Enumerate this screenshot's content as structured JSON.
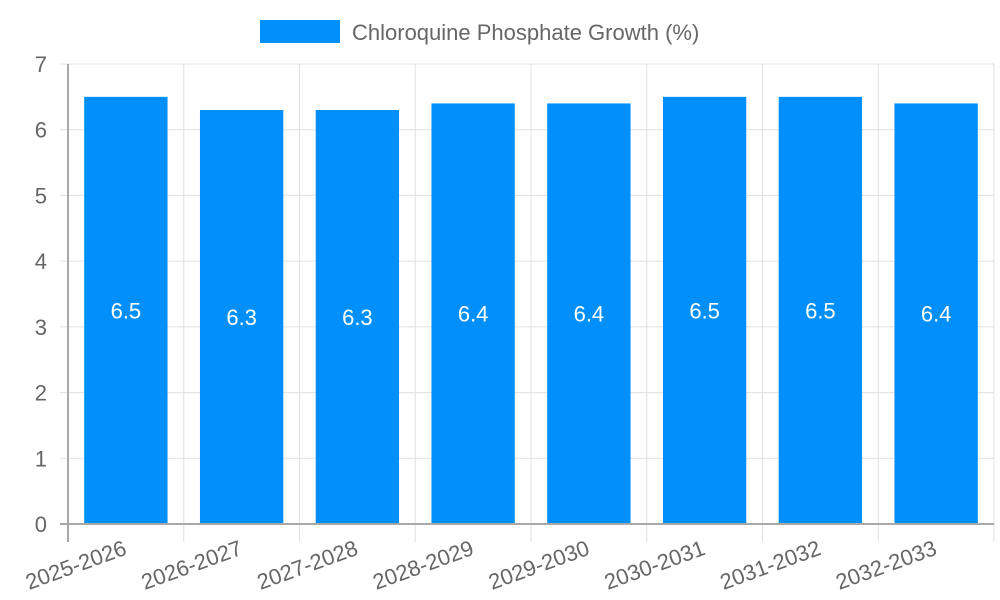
{
  "chart_data": {
    "type": "bar",
    "title": "",
    "legend": [
      {
        "label": "Chloroquine Phosphate Growth (%)",
        "color": "#008ffb"
      }
    ],
    "legend_position": "top",
    "categories": [
      "2025-2026",
      "2026-2027",
      "2027-2028",
      "2028-2029",
      "2029-2030",
      "2030-2031",
      "2031-2032",
      "2032-2033"
    ],
    "series": [
      {
        "name": "Chloroquine Phosphate Growth (%)",
        "values": [
          6.5,
          6.3,
          6.3,
          6.4,
          6.4,
          6.5,
          6.5,
          6.4
        ],
        "color": "#008ffb"
      }
    ],
    "data_labels": [
      "6.5",
      "6.3",
      "6.3",
      "6.4",
      "6.4",
      "6.5",
      "6.5",
      "6.4"
    ],
    "xlabel": "",
    "ylabel": "",
    "ylim": [
      0,
      7
    ],
    "y_ticks": [
      "0",
      "1",
      "2",
      "3",
      "4",
      "5",
      "6",
      "7"
    ],
    "grid": true,
    "x_tick_rotation": -20
  },
  "legend": {
    "label": "Chloroquine Phosphate Growth (%)"
  }
}
